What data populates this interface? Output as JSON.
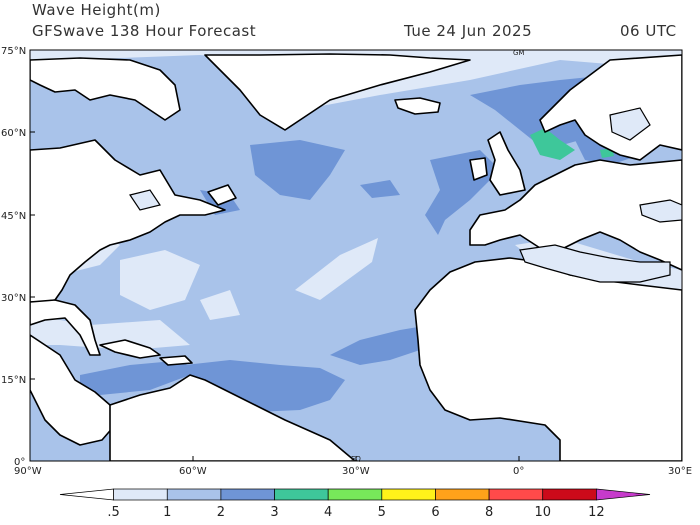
{
  "header": {
    "line1": "Wave Height(m)",
    "model": "GFSwave 138 Hour Forecast",
    "date": "Tue 24 Jun 2025",
    "time": "06 UTC"
  },
  "map": {
    "projection": "lat-lon",
    "lon_range": [
      -90,
      30
    ],
    "lat_range": [
      0,
      75
    ],
    "lat_labels": [
      "75°N",
      "60°N",
      "45°N",
      "30°N",
      "15°N",
      "0°"
    ],
    "lon_labels": [
      "90°W",
      "60°W",
      "30°W",
      "0°",
      "30°E"
    ],
    "inner_labels": [
      "GM",
      "EQ"
    ]
  },
  "colorbar": {
    "labels": [
      ".5",
      "1",
      "2",
      "3",
      "4",
      "5",
      "6",
      "8",
      "10",
      "12"
    ],
    "colors": [
      "#ffffff",
      "#dfe9f8",
      "#a9c3ea",
      "#6f95d6",
      "#3ec79a",
      "#77e85a",
      "#fff21a",
      "#ffa21a",
      "#ff4a4a",
      "#cc0a1a",
      "#c63acb"
    ]
  }
}
